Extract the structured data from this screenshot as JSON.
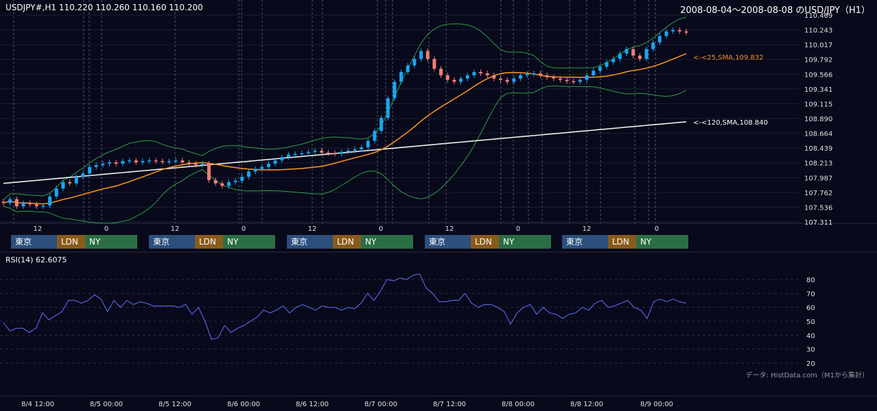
{
  "header": {
    "symbol_info": "USDJPY#,H1 110.220 110.260 110.160 110.200",
    "title": "2008-08-04～2008-08-08 のUSD/JPY（H1）",
    "source": "データ: HistData.com（M1から集計）"
  },
  "colors": {
    "background": "#08091a",
    "bull": "#1aa6f2",
    "bear": "#f07f74",
    "sma25": "#f0921e",
    "sma120": "#f0f0f0",
    "bollinger": "#2e9e4a",
    "rsi": "#5462e0",
    "tokyo": "#2c4f7c",
    "london": "#8a5a1c",
    "newyork": "#2b6e44"
  },
  "sessions": {
    "tokyo": "東京",
    "london": "LDN",
    "newyork": "NY"
  },
  "chart_data": [
    {
      "type": "candlestick",
      "name": "price",
      "ylim": [
        107.311,
        110.469
      ],
      "y_ticks": [
        "110.469",
        "110.243",
        "110.017",
        "109.792",
        "109.566",
        "109.341",
        "109.115",
        "108.890",
        "108.664",
        "108.439",
        "108.213",
        "107.987",
        "107.762",
        "107.536",
        "107.311"
      ],
      "x_ticks": [
        "12",
        "0",
        "12",
        "0",
        "12",
        "0",
        "12",
        "0",
        "12",
        "0"
      ],
      "grid": true,
      "ohlc_close_path": [
        107.6,
        107.66,
        107.55,
        107.6,
        107.58,
        107.55,
        107.56,
        107.7,
        107.82,
        107.92,
        107.9,
        108.0,
        108.05,
        108.15,
        108.18,
        108.2,
        108.22,
        108.2,
        108.24,
        108.25,
        108.22,
        108.24,
        108.25,
        108.24,
        108.23,
        108.24,
        108.25,
        108.22,
        108.2,
        108.18,
        108.2,
        107.95,
        107.9,
        107.86,
        107.92,
        107.94,
        108.0,
        108.08,
        108.12,
        108.15,
        108.2,
        108.25,
        108.3,
        108.34,
        108.35,
        108.36,
        108.38,
        108.4,
        108.37,
        108.36,
        108.35,
        108.38,
        108.4,
        108.42,
        108.45,
        108.55,
        108.7,
        108.9,
        109.2,
        109.45,
        109.6,
        109.7,
        109.8,
        109.92,
        109.8,
        109.65,
        109.55,
        109.48,
        109.45,
        109.5,
        109.55,
        109.6,
        109.58,
        109.55,
        109.5,
        109.48,
        109.45,
        109.5,
        109.55,
        109.57,
        109.58,
        109.55,
        109.52,
        109.5,
        109.48,
        109.46,
        109.45,
        109.48,
        109.55,
        109.62,
        109.68,
        109.75,
        109.8,
        109.88,
        109.95,
        109.85,
        109.8,
        109.95,
        110.05,
        110.15,
        110.22,
        110.24,
        110.22,
        110.2
      ],
      "annotations": [
        "<-<25,SMA,109.832",
        "<-<120,SMA,108.840"
      ],
      "series": [
        {
          "name": "25,SMA",
          "last": 109.832
        },
        {
          "name": "120,SMA",
          "last": 108.84
        }
      ],
      "x_labels": [
        "8/4 12:00",
        "8/5 00:00",
        "8/5 12:00",
        "8/6 00:00",
        "8/6 12:00",
        "8/7 00:00",
        "8/7 12:00",
        "8/8 00:00",
        "8/8 12:00",
        "8/9 00:00"
      ]
    },
    {
      "type": "line",
      "name": "RSI",
      "label": "RSI(14) 62.6075",
      "ylim": [
        15,
        90
      ],
      "y_ticks": [
        "80",
        "70",
        "60",
        "50",
        "40",
        "30",
        "20"
      ],
      "values": [
        49,
        43,
        45,
        45,
        42,
        45,
        56,
        51,
        54,
        57,
        65,
        65,
        63,
        65,
        69,
        66,
        57,
        65,
        60,
        65,
        62,
        64,
        63,
        61,
        61,
        61,
        61,
        60,
        62,
        55,
        60,
        50,
        37,
        38,
        47,
        42,
        45,
        47,
        50,
        53,
        58,
        56,
        58,
        61,
        56,
        60,
        62,
        60,
        58,
        61,
        60,
        60,
        58,
        60,
        59,
        63,
        70,
        65,
        72,
        80,
        79,
        81,
        80,
        83,
        84,
        74,
        70,
        64,
        64,
        65,
        65,
        70,
        63,
        60,
        62,
        62,
        60,
        57,
        48,
        56,
        60,
        62,
        55,
        60,
        56,
        55,
        52,
        55,
        56,
        60,
        58,
        63,
        65,
        60,
        61,
        63,
        65,
        60,
        58,
        52,
        64,
        66,
        64,
        66,
        64,
        63
      ]
    }
  ]
}
